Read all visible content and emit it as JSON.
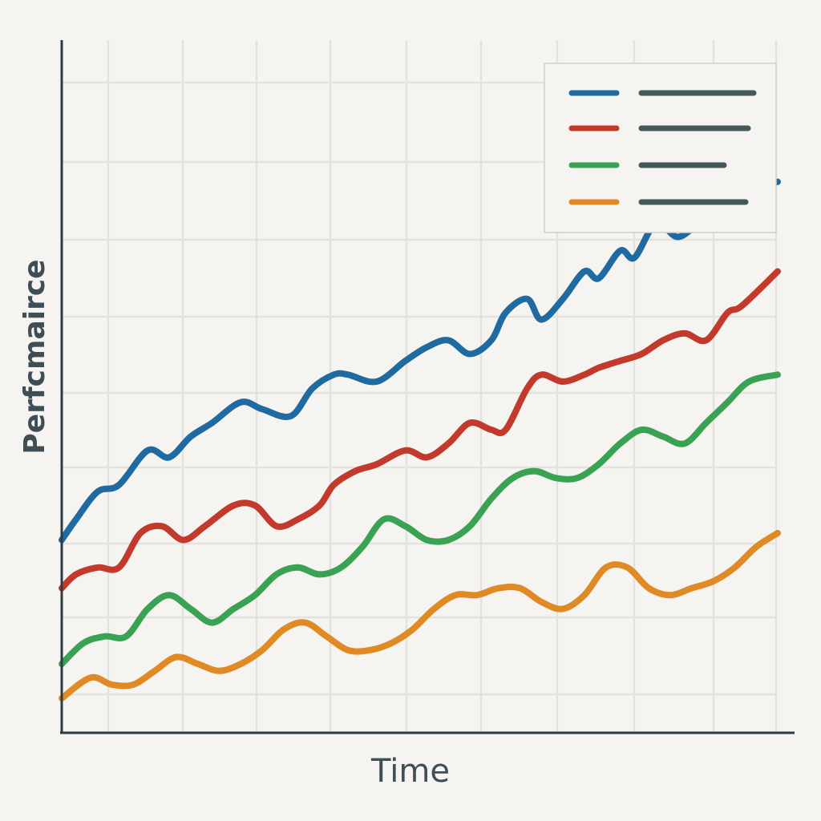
{
  "chart_data": {
    "type": "line",
    "title": "",
    "xlabel": "Time",
    "ylabel": "Perfcmairce",
    "grid": true,
    "legend": "top-right",
    "xlim": [
      0,
      100
    ],
    "ylim": [
      0,
      100
    ],
    "series": [
      {
        "color": "#1f6aa0",
        "x": [
          0,
          2,
          5,
          8,
          12,
          15,
          18,
          21,
          25,
          28,
          32,
          35,
          38,
          40,
          44,
          48,
          51,
          54,
          57,
          60,
          62,
          65,
          67,
          70,
          73,
          75,
          78,
          80,
          83,
          86,
          89,
          92,
          95,
          100
        ],
        "y": [
          28,
          31,
          35,
          36,
          41,
          40,
          43,
          45,
          48,
          47,
          46,
          50,
          52,
          52,
          51,
          54,
          56,
          57,
          55,
          57,
          61,
          63,
          60,
          63,
          67,
          66,
          70,
          69,
          74,
          72,
          74,
          76,
          79,
          80
        ]
      },
      {
        "color": "#c13a2b",
        "x": [
          0,
          2,
          5,
          8,
          11,
          14,
          17,
          20,
          24,
          27,
          30,
          33,
          36,
          38,
          41,
          44,
          48,
          51,
          54,
          57,
          60,
          62,
          65,
          67,
          70,
          73,
          75,
          78,
          81,
          84,
          87,
          90,
          93,
          95,
          100
        ],
        "y": [
          21,
          23,
          24,
          24,
          29,
          30,
          28,
          30,
          33,
          33,
          30,
          31,
          33,
          36,
          38,
          39,
          41,
          40,
          42,
          45,
          44,
          44,
          50,
          52,
          51,
          52,
          53,
          54,
          55,
          57,
          58,
          57,
          61,
          62,
          67
        ]
      },
      {
        "color": "#3aa253",
        "x": [
          0,
          3,
          6,
          9,
          12,
          15,
          18,
          21,
          24,
          27,
          30,
          33,
          36,
          39,
          42,
          45,
          48,
          51,
          54,
          57,
          60,
          63,
          66,
          69,
          72,
          75,
          78,
          81,
          84,
          87,
          90,
          93,
          96,
          100
        ],
        "y": [
          10,
          13,
          14,
          14,
          18,
          20,
          18,
          16,
          18,
          20,
          23,
          24,
          23,
          24,
          27,
          31,
          30,
          28,
          28,
          30,
          34,
          37,
          38,
          37,
          37,
          39,
          42,
          44,
          43,
          42,
          45,
          48,
          51,
          52
        ]
      },
      {
        "color": "#e08a25",
        "x": [
          0,
          4,
          7,
          10,
          13,
          16,
          19,
          22,
          25,
          28,
          31,
          34,
          37,
          40,
          43,
          46,
          49,
          52,
          55,
          58,
          61,
          64,
          67,
          70,
          73,
          76,
          79,
          82,
          85,
          88,
          91,
          94,
          97,
          100
        ],
        "y": [
          5,
          8,
          7,
          7,
          9,
          11,
          10,
          9,
          10,
          12,
          15,
          16,
          14,
          12,
          12,
          13,
          15,
          18,
          20,
          20,
          21,
          21,
          19,
          18,
          20,
          24,
          24,
          21,
          20,
          21,
          22,
          24,
          27,
          29
        ]
      }
    ],
    "legend_entries": [
      {
        "color": "#1f6aa0"
      },
      {
        "color": "#c13a2b"
      },
      {
        "color": "#3aa253"
      },
      {
        "color": "#e08a25"
      }
    ]
  }
}
